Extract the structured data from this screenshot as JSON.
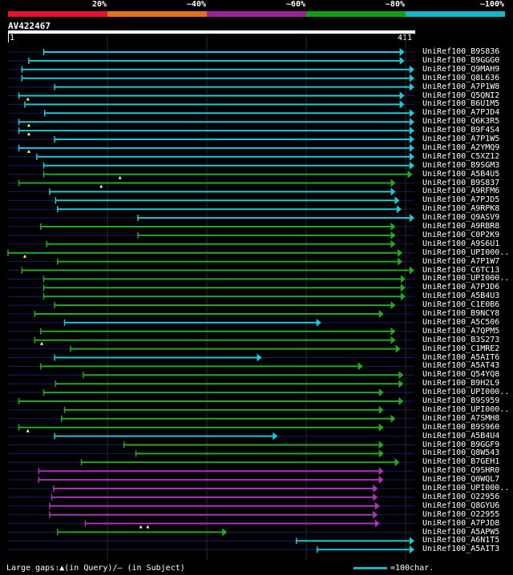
{
  "legend": {
    "segments": [
      {
        "label": "20%",
        "color": "#e8112d"
      },
      {
        "label": "~40%",
        "color": "#e8701a"
      },
      {
        "label": "~60%",
        "color": "#992299"
      },
      {
        "label": "~80%",
        "color": "#11a011"
      },
      {
        "label": "~100%",
        "color": "#11b8c8"
      }
    ]
  },
  "query": {
    "name": "AV422467",
    "start_label": "1",
    "end_label": "411",
    "length": 411
  },
  "hits": [
    {
      "name": "UniRef100_B9S836",
      "start": 37,
      "end": 401,
      "color": "cyan"
    },
    {
      "name": "UniRef100_B9GGG0",
      "start": 22,
      "end": 401,
      "color": "cyan"
    },
    {
      "name": "UniRef100_Q9MAH9",
      "start": 15,
      "end": 411,
      "color": "cyan"
    },
    {
      "name": "UniRef100_Q8L636",
      "start": 15,
      "end": 411,
      "color": "cyan"
    },
    {
      "name": "UniRef100_A7P1W8",
      "start": 48,
      "end": 411,
      "color": "cyan"
    },
    {
      "name": "UniRef100_Q5QNI2",
      "start": 12,
      "end": 401,
      "color": "cyan",
      "gaps": [
        21
      ]
    },
    {
      "name": "UniRef100_B6U1M5",
      "start": 18,
      "end": 401,
      "color": "cyan"
    },
    {
      "name": "UniRef100_A7PJD4",
      "start": 38,
      "end": 411,
      "color": "cyan"
    },
    {
      "name": "UniRef100_Q6K3R5",
      "start": 12,
      "end": 411,
      "color": "cyan",
      "gaps": [
        22
      ]
    },
    {
      "name": "UniRef100_B9F4S4",
      "start": 12,
      "end": 411,
      "color": "cyan",
      "gaps": [
        22
      ]
    },
    {
      "name": "UniRef100_A7P1W5",
      "start": 48,
      "end": 411,
      "color": "cyan"
    },
    {
      "name": "UniRef100_A2YMQ9",
      "start": 12,
      "end": 411,
      "color": "cyan",
      "gaps": [
        22
      ]
    },
    {
      "name": "UniRef100_C5XZ12",
      "start": 30,
      "end": 411,
      "color": "cyan"
    },
    {
      "name": "UniRef100_B9SGM3",
      "start": 37,
      "end": 411,
      "color": "cyan"
    },
    {
      "name": "UniRef100_A5B4U5",
      "start": 37,
      "end": 409,
      "color": "green",
      "gaps": [
        114
      ]
    },
    {
      "name": "UniRef100_B9S837",
      "start": 12,
      "end": 392,
      "color": "green",
      "gaps": [
        95
      ]
    },
    {
      "name": "UniRef100_A9RFM6",
      "start": 43,
      "end": 392,
      "color": "cyan"
    },
    {
      "name": "UniRef100_A7PJD5",
      "start": 49,
      "end": 396,
      "color": "cyan"
    },
    {
      "name": "UniRef100_A9RPK8",
      "start": 51,
      "end": 398,
      "color": "cyan"
    },
    {
      "name": "UniRef100_Q9ASV9",
      "start": 132,
      "end": 411,
      "color": "cyan"
    },
    {
      "name": "UniRef100_A9RBR8",
      "start": 34,
      "end": 392,
      "color": "green"
    },
    {
      "name": "UniRef100_C0P2K9",
      "start": 132,
      "end": 392,
      "color": "green"
    },
    {
      "name": "UniRef100_A9S6U1",
      "start": 40,
      "end": 392,
      "color": "green"
    },
    {
      "name": "UniRef100_UPI000..",
      "start": 1,
      "end": 399,
      "color": "green",
      "gaps": [
        18
      ]
    },
    {
      "name": "UniRef100_A7P1W7",
      "start": 51,
      "end": 399,
      "color": "green"
    },
    {
      "name": "UniRef100_C6TC13",
      "start": 15,
      "end": 411,
      "color": "green"
    },
    {
      "name": "UniRef100_UPI000..",
      "start": 37,
      "end": 402,
      "color": "green"
    },
    {
      "name": "UniRef100_A7PJD6",
      "start": 37,
      "end": 402,
      "color": "green"
    },
    {
      "name": "UniRef100_A5B4U3",
      "start": 37,
      "end": 402,
      "color": "green"
    },
    {
      "name": "UniRef100_C1E0B6",
      "start": 48,
      "end": 392,
      "color": "green"
    },
    {
      "name": "UniRef100_B9NCY8",
      "start": 28,
      "end": 380,
      "color": "green"
    },
    {
      "name": "UniRef100_A5C506",
      "start": 58,
      "end": 317,
      "color": "cyan"
    },
    {
      "name": "UniRef100_A7QPM5",
      "start": 34,
      "end": 392,
      "color": "green"
    },
    {
      "name": "UniRef100_B3S273",
      "start": 28,
      "end": 392,
      "color": "green",
      "gaps": [
        35
      ]
    },
    {
      "name": "UniRef100_C1MRE2",
      "start": 64,
      "end": 397,
      "color": "green"
    },
    {
      "name": "UniRef100_A5AIT6",
      "start": 48,
      "end": 257,
      "color": "cyan"
    },
    {
      "name": "UniRef100_A5AT43",
      "start": 34,
      "end": 359,
      "color": "green"
    },
    {
      "name": "UniRef100_Q54YQ8",
      "start": 77,
      "end": 400,
      "color": "green"
    },
    {
      "name": "UniRef100_B9H2L9",
      "start": 49,
      "end": 400,
      "color": "green"
    },
    {
      "name": "UniRef100_UPI000..",
      "start": 37,
      "end": 380,
      "color": "green"
    },
    {
      "name": "UniRef100_B9S959",
      "start": 12,
      "end": 400,
      "color": "green"
    },
    {
      "name": "UniRef100_UPI000..",
      "start": 58,
      "end": 380,
      "color": "green"
    },
    {
      "name": "UniRef100_A7SMH8",
      "start": 55,
      "end": 392,
      "color": "green"
    },
    {
      "name": "UniRef100_B9S960",
      "start": 12,
      "end": 380,
      "color": "green",
      "gaps": [
        21
      ]
    },
    {
      "name": "UniRef100_A5B4U4",
      "start": 48,
      "end": 273,
      "color": "cyan"
    },
    {
      "name": "UniRef100_B9GGF9",
      "start": 118,
      "end": 380,
      "color": "green"
    },
    {
      "name": "UniRef100_Q8W543",
      "start": 130,
      "end": 380,
      "color": "green"
    },
    {
      "name": "UniRef100_B7GEH1",
      "start": 75,
      "end": 396,
      "color": "green"
    },
    {
      "name": "UniRef100_Q9SHR0",
      "start": 32,
      "end": 380,
      "color": "purple"
    },
    {
      "name": "UniRef100_Q0WQL7",
      "start": 32,
      "end": 380,
      "color": "purple"
    },
    {
      "name": "UniRef100_UPI000..",
      "start": 47,
      "end": 374,
      "color": "purple"
    },
    {
      "name": "UniRef100_O22956",
      "start": 45,
      "end": 374,
      "color": "purple"
    },
    {
      "name": "UniRef100_Q8GYU6",
      "start": 43,
      "end": 376,
      "color": "purple"
    },
    {
      "name": "UniRef100_O22955",
      "start": 43,
      "end": 374,
      "color": "purple"
    },
    {
      "name": "UniRef100_A7PJD8",
      "start": 79,
      "end": 376,
      "color": "purple",
      "gaps": [
        135,
        142
      ]
    },
    {
      "name": "UniRef100_A5APW5",
      "start": 51,
      "end": 222,
      "color": "green"
    },
    {
      "name": "UniRef100_A6N1T5",
      "start": 292,
      "end": 411,
      "color": "cyan"
    },
    {
      "name": "UniRef100_A5AIT3",
      "start": 313,
      "end": 411,
      "color": "cyan"
    }
  ],
  "footer": {
    "gaps_text": "Large gaps:▲(in Query)/– (in Subject)",
    "scale_text": "=100char.",
    "scale_color": "#11b8c8"
  }
}
